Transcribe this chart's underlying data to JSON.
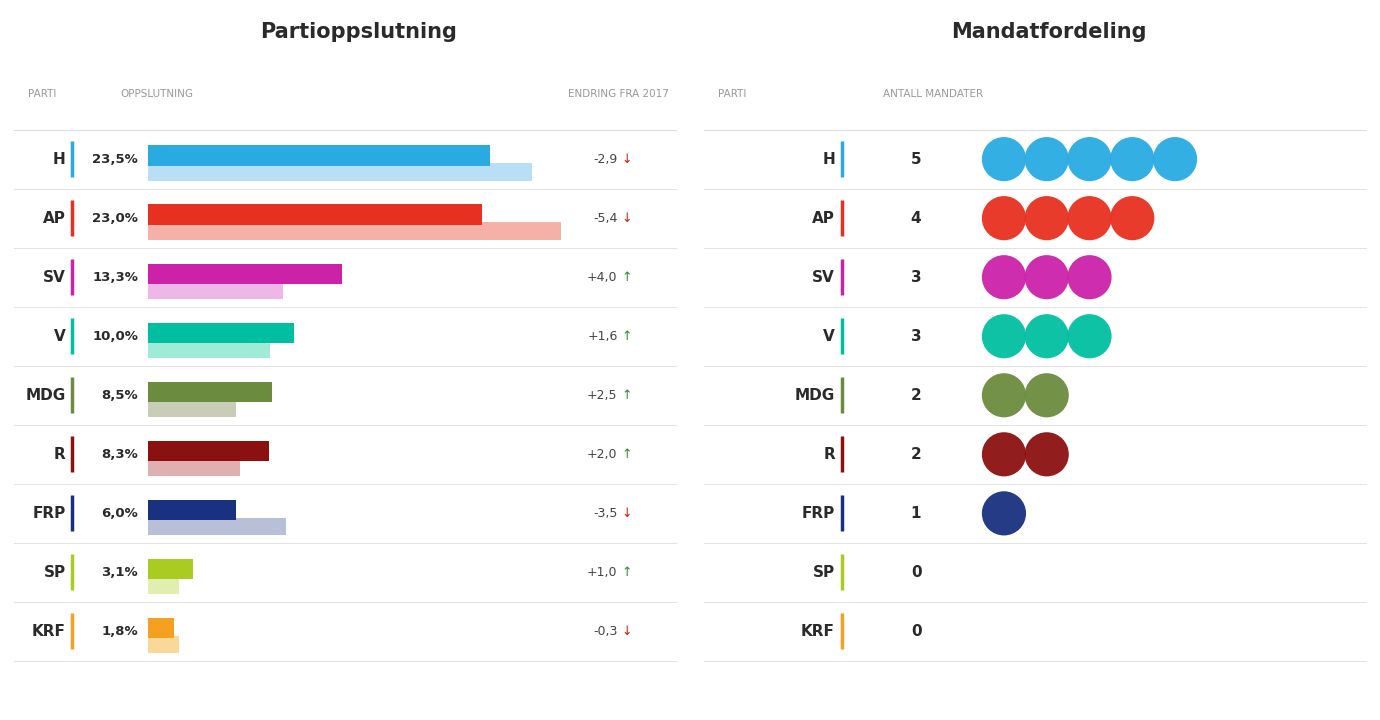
{
  "parties": [
    "H",
    "AP",
    "SV",
    "V",
    "MDG",
    "R",
    "FRP",
    "SP",
    "KRF"
  ],
  "oppslutning": [
    23.5,
    23.0,
    13.3,
    10.0,
    8.5,
    8.3,
    6.0,
    3.1,
    1.8
  ],
  "prev_oppslutning": [
    26.4,
    28.4,
    9.3,
    8.4,
    6.0,
    6.3,
    9.5,
    2.1,
    2.1
  ],
  "endring": [
    -2.9,
    -5.4,
    4.0,
    1.6,
    2.5,
    2.0,
    -3.5,
    1.0,
    -0.3
  ],
  "mandater": [
    5,
    4,
    3,
    3,
    2,
    2,
    1,
    0,
    0
  ],
  "bar_colors": [
    "#29ABE2",
    "#E83020",
    "#CC22AA",
    "#00BFA0",
    "#6B8C3E",
    "#8B1010",
    "#1A3080",
    "#AACC22",
    "#F5A020"
  ],
  "prev_bar_colors": [
    "#B8DFF5",
    "#F5B0A8",
    "#EDB8E8",
    "#A0EAD8",
    "#C8CDB8",
    "#E0B0B0",
    "#B8C0D8",
    "#E2EDB0",
    "#FAD898"
  ],
  "party_line_colors": [
    "#29ABE2",
    "#E83020",
    "#CC22AA",
    "#00BFA0",
    "#6B8C3E",
    "#8B1010",
    "#1A3080",
    "#AACC22",
    "#F5A020"
  ],
  "left_title": "Partioppslutning",
  "right_title": "Mandatfordeling",
  "left_col1": "PARTI",
  "left_col2": "OPPSLUTNING",
  "left_col3": "ENDRING FRA 2017",
  "right_col1": "PARTI",
  "right_col2": "ANTALL MANDATER",
  "bg_color": "#FFFFFF",
  "separator_color": "#DDDDDD",
  "label_color": "#2A2A2A",
  "header_color": "#999999",
  "up_color": "#2E8B2E",
  "down_color": "#CC2000"
}
